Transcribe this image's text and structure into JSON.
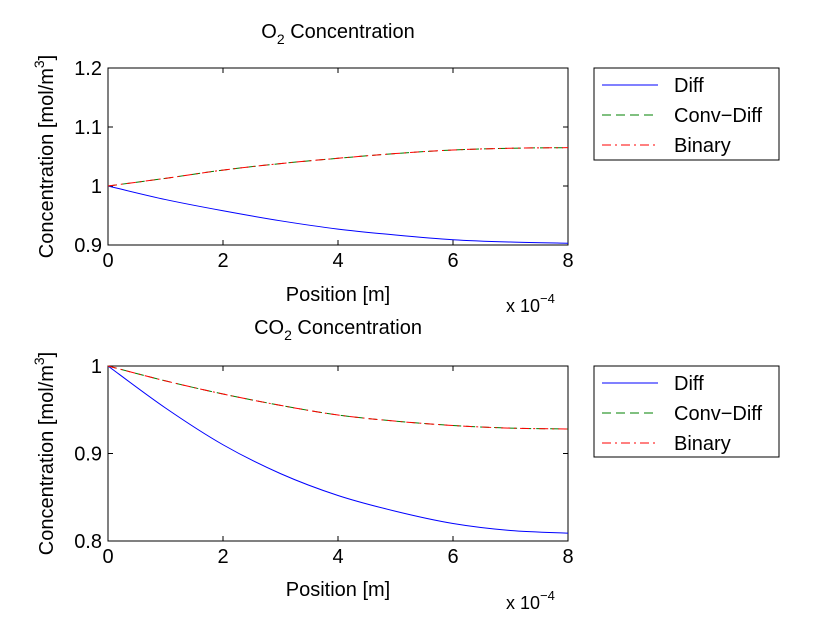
{
  "chart_data": [
    {
      "type": "line",
      "title": {
        "prefix": "O",
        "sub": "2",
        "suffix": " Concentration"
      },
      "xlabel": "Position [m]",
      "ylabel": {
        "main": "Concentration [mol/m",
        "sup": "3",
        "close": "]"
      },
      "x_multiplier": {
        "prefix": "x 10",
        "sup": "−4"
      },
      "xlim": [
        0,
        8
      ],
      "ylim": [
        0.9,
        1.2
      ],
      "xticks": [
        0,
        2,
        4,
        6,
        8
      ],
      "yticks": [
        0.9,
        1,
        1.1,
        1.2
      ],
      "xtick_labels": [
        "0",
        "2",
        "4",
        "6",
        "8"
      ],
      "ytick_labels": [
        "0.9",
        "1",
        "1.1",
        "1.2"
      ],
      "grid": false,
      "legend_position": "outside-right-top",
      "x": [
        0,
        1,
        2,
        3,
        4,
        5,
        6,
        7,
        8
      ],
      "series": [
        {
          "name": "Diff",
          "color": "#0000ff",
          "style": "solid",
          "values": [
            1.0,
            0.977,
            0.958,
            0.941,
            0.927,
            0.917,
            0.909,
            0.905,
            0.903
          ]
        },
        {
          "name": "Conv−Diff",
          "color": "#008000",
          "style": "dashed",
          "values": [
            1.0,
            1.013,
            1.027,
            1.038,
            1.047,
            1.055,
            1.061,
            1.064,
            1.065
          ]
        },
        {
          "name": "Binary",
          "color": "#ff0000",
          "style": "dashdot",
          "values": [
            1.0,
            1.013,
            1.027,
            1.038,
            1.047,
            1.055,
            1.061,
            1.064,
            1.065
          ]
        }
      ]
    },
    {
      "type": "line",
      "title": {
        "prefix": "CO",
        "sub": "2",
        "suffix": " Concentration"
      },
      "xlabel": "Position [m]",
      "ylabel": {
        "main": "Concentration [mol/m",
        "sup": "3",
        "close": "]"
      },
      "x_multiplier": {
        "prefix": "x 10",
        "sup": "−4"
      },
      "xlim": [
        0,
        8
      ],
      "ylim": [
        0.8,
        1.0
      ],
      "xticks": [
        0,
        2,
        4,
        6,
        8
      ],
      "yticks": [
        0.8,
        0.9,
        1
      ],
      "xtick_labels": [
        "0",
        "2",
        "4",
        "6",
        "8"
      ],
      "ytick_labels": [
        "0.8",
        "0.9",
        "1"
      ],
      "grid": false,
      "legend_position": "outside-right-top",
      "x": [
        0,
        1,
        2,
        3,
        4,
        5,
        6,
        7,
        8
      ],
      "series": [
        {
          "name": "Diff",
          "color": "#0000ff",
          "style": "solid",
          "values": [
            1.0,
            0.952,
            0.91,
            0.877,
            0.852,
            0.834,
            0.82,
            0.812,
            0.809
          ]
        },
        {
          "name": "Conv−Diff",
          "color": "#008000",
          "style": "dashed",
          "values": [
            1.0,
            0.983,
            0.968,
            0.955,
            0.944,
            0.937,
            0.932,
            0.929,
            0.928
          ]
        },
        {
          "name": "Binary",
          "color": "#ff0000",
          "style": "dashdot",
          "values": [
            1.0,
            0.983,
            0.968,
            0.955,
            0.944,
            0.937,
            0.932,
            0.929,
            0.928
          ]
        }
      ]
    }
  ]
}
